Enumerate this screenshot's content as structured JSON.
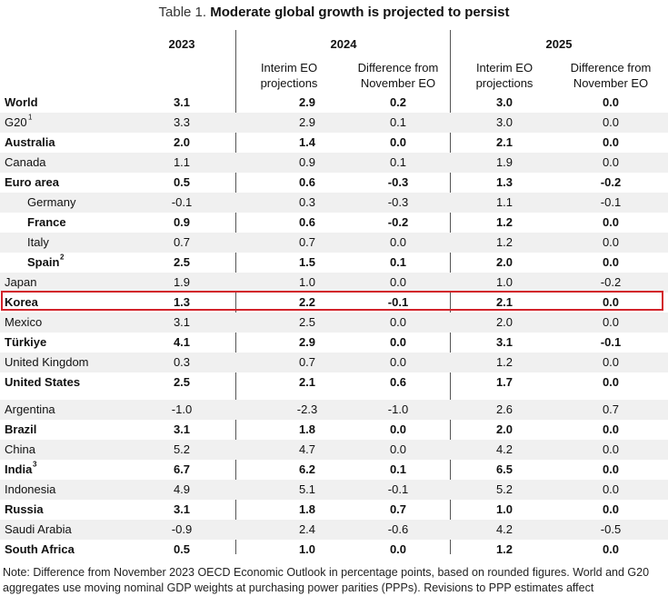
{
  "title": {
    "prefix": "Table 1. ",
    "main": "Moderate global growth is projected to persist"
  },
  "headers": {
    "y2023": "2023",
    "y2024": "2024",
    "y2025": "2025",
    "interim_line1": "Interim EO",
    "interim_line2": "projections",
    "diff_line1": "Difference from",
    "diff_line2": "November EO"
  },
  "rows": [
    {
      "name": "World",
      "sup": "",
      "v": [
        "3.1",
        "2.9",
        "0.2",
        "3.0",
        "0.0"
      ],
      "bold": true,
      "indent": false
    },
    {
      "name": "G20",
      "sup": "1",
      "v": [
        "3.3",
        "2.9",
        "0.1",
        "3.0",
        "0.0"
      ],
      "bold": false,
      "indent": false
    },
    {
      "name": "Australia",
      "sup": "",
      "v": [
        "2.0",
        "1.4",
        "0.0",
        "2.1",
        "0.0"
      ],
      "bold": true,
      "indent": false
    },
    {
      "name": "Canada",
      "sup": "",
      "v": [
        "1.1",
        "0.9",
        "0.1",
        "1.9",
        "0.0"
      ],
      "bold": false,
      "indent": false
    },
    {
      "name": "Euro area",
      "sup": "",
      "v": [
        "0.5",
        "0.6",
        "-0.3",
        "1.3",
        "-0.2"
      ],
      "bold": true,
      "indent": false
    },
    {
      "name": "Germany",
      "sup": "",
      "v": [
        "-0.1",
        "0.3",
        "-0.3",
        "1.1",
        "-0.1"
      ],
      "bold": false,
      "indent": true
    },
    {
      "name": "France",
      "sup": "",
      "v": [
        "0.9",
        "0.6",
        "-0.2",
        "1.2",
        "0.0"
      ],
      "bold": true,
      "indent": true
    },
    {
      "name": "Italy",
      "sup": "",
      "v": [
        "0.7",
        "0.7",
        "0.0",
        "1.2",
        "0.0"
      ],
      "bold": false,
      "indent": true
    },
    {
      "name": "Spain",
      "sup": "2",
      "v": [
        "2.5",
        "1.5",
        "0.1",
        "2.0",
        "0.0"
      ],
      "bold": true,
      "indent": true
    },
    {
      "name": "Japan",
      "sup": "",
      "v": [
        "1.9",
        "1.0",
        "0.0",
        "1.0",
        "-0.2"
      ],
      "bold": false,
      "indent": false
    },
    {
      "name": "Korea",
      "sup": "",
      "v": [
        "1.3",
        "2.2",
        "-0.1",
        "2.1",
        "0.0"
      ],
      "bold": true,
      "indent": false
    },
    {
      "name": "Mexico",
      "sup": "",
      "v": [
        "3.1",
        "2.5",
        "0.0",
        "2.0",
        "0.0"
      ],
      "bold": false,
      "indent": false
    },
    {
      "name": "Türkiye",
      "sup": "",
      "v": [
        "4.1",
        "2.9",
        "0.0",
        "3.1",
        "-0.1"
      ],
      "bold": true,
      "indent": false
    },
    {
      "name": "United Kingdom",
      "sup": "",
      "v": [
        "0.3",
        "0.7",
        "0.0",
        "1.2",
        "0.0"
      ],
      "bold": false,
      "indent": false
    },
    {
      "name": "United States",
      "sup": "",
      "v": [
        "2.5",
        "2.1",
        "0.6",
        "1.7",
        "0.0"
      ],
      "bold": true,
      "indent": false
    },
    {
      "name": "Argentina",
      "sup": "",
      "v": [
        "-1.0",
        "-2.3",
        "-1.0",
        "2.6",
        "0.7"
      ],
      "bold": false,
      "indent": false
    },
    {
      "name": "Brazil",
      "sup": "",
      "v": [
        "3.1",
        "1.8",
        "0.0",
        "2.0",
        "0.0"
      ],
      "bold": true,
      "indent": false
    },
    {
      "name": "China",
      "sup": "",
      "v": [
        "5.2",
        "4.7",
        "0.0",
        "4.2",
        "0.0"
      ],
      "bold": false,
      "indent": false
    },
    {
      "name": "India",
      "sup": "3",
      "v": [
        "6.7",
        "6.2",
        "0.1",
        "6.5",
        "0.0"
      ],
      "bold": true,
      "indent": false
    },
    {
      "name": "Indonesia",
      "sup": "",
      "v": [
        "4.9",
        "5.1",
        "-0.1",
        "5.2",
        "0.0"
      ],
      "bold": false,
      "indent": false
    },
    {
      "name": "Russia",
      "sup": "",
      "v": [
        "3.1",
        "1.8",
        "0.7",
        "1.0",
        "0.0"
      ],
      "bold": true,
      "indent": false
    },
    {
      "name": "Saudi Arabia",
      "sup": "",
      "v": [
        "-0.9",
        "2.4",
        "-0.6",
        "4.2",
        "-0.5"
      ],
      "bold": false,
      "indent": false
    },
    {
      "name": "South Africa",
      "sup": "",
      "v": [
        "0.5",
        "1.0",
        "0.0",
        "1.2",
        "0.0"
      ],
      "bold": true,
      "indent": false
    }
  ],
  "highlight_country": "Korea",
  "highlight_color": "#d2232a",
  "note": "Note: Difference from November 2023 OECD Economic Outlook in percentage points, based on rounded figures. World and G20 aggregates use moving nominal GDP weights at purchasing power parities (PPPs). Revisions to PPP estimates affect"
}
